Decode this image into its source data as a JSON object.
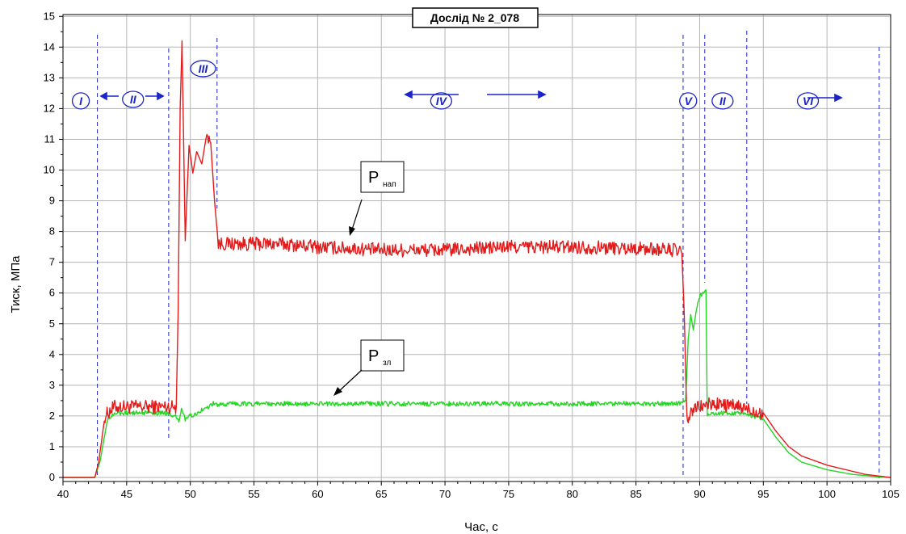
{
  "chart_data": {
    "type": "line",
    "title": "Дослід № 2_078",
    "xlabel": "Час, с",
    "ylabel": "Тиск, МПа",
    "xlim": [
      40,
      105
    ],
    "ylim": [
      -0.2,
      15
    ],
    "xticks": [
      40,
      45,
      50,
      55,
      60,
      65,
      70,
      75,
      80,
      85,
      90,
      95,
      100,
      105
    ],
    "yticks": [
      0,
      1,
      2,
      3,
      4,
      5,
      6,
      7,
      8,
      9,
      10,
      11,
      12,
      13,
      14,
      15
    ],
    "grid": true,
    "colors": {
      "p_nap": "#e31b1b",
      "p_zl": "#22d622",
      "markers": "#1a24c8"
    },
    "series": [
      {
        "name": "P_нап",
        "x": [
          40,
          42.5,
          42.8,
          43.3,
          44,
          48,
          48.9,
          49.05,
          49.2,
          49.35,
          49.6,
          49.9,
          50.2,
          50.5,
          50.9,
          51.3,
          51.6,
          51.9,
          52.2,
          53,
          55,
          57,
          60,
          65,
          70,
          75,
          80,
          85,
          88,
          88.6,
          88.8,
          89.0,
          89.2,
          89.5,
          90,
          91,
          93,
          95,
          96,
          97,
          98,
          100,
          102,
          103,
          104,
          105
        ],
        "y": [
          0,
          0,
          0.5,
          2.0,
          2.3,
          2.3,
          2.3,
          5.5,
          12,
          14.2,
          7.7,
          10.8,
          9.9,
          10.6,
          10.2,
          11.2,
          10.9,
          9.0,
          7.6,
          7.6,
          7.6,
          7.6,
          7.5,
          7.4,
          7.4,
          7.5,
          7.5,
          7.45,
          7.4,
          7.3,
          5.2,
          1.8,
          2.0,
          2.2,
          2.3,
          2.4,
          2.3,
          2.1,
          1.5,
          1.0,
          0.7,
          0.4,
          0.2,
          0.1,
          0.05,
          0
        ]
      },
      {
        "name": "P_зл",
        "x": [
          40,
          42.5,
          42.9,
          43.5,
          44,
          48,
          48.9,
          49.1,
          49.3,
          49.6,
          50,
          50.5,
          51,
          51.8,
          52.3,
          53,
          60,
          70,
          80,
          88,
          88.6,
          88.9,
          89.1,
          89.3,
          89.5,
          89.8,
          90,
          90.2,
          90.5,
          90.6,
          91,
          93,
          95,
          96,
          97,
          98,
          100,
          102,
          104,
          105
        ],
        "y": [
          0,
          0,
          0.5,
          1.9,
          2.1,
          2.1,
          2.0,
          1.8,
          2.2,
          1.9,
          2.0,
          2.1,
          2.2,
          2.4,
          2.35,
          2.4,
          2.4,
          2.4,
          2.4,
          2.4,
          2.4,
          2.5,
          4.5,
          5.3,
          4.8,
          5.6,
          5.9,
          6.0,
          6.1,
          2.0,
          2.1,
          2.1,
          1.9,
          1.3,
          0.8,
          0.5,
          0.25,
          0.1,
          0.02,
          0
        ]
      }
    ],
    "phase_lines_x": [
      42.7,
      48.3,
      52.1,
      88.7,
      90.4,
      93.7,
      104.1
    ],
    "phases": [
      {
        "label": "I",
        "x": 41.4,
        "y": 12.25
      },
      {
        "label": "II",
        "x": 45.5,
        "y": 12.3
      },
      {
        "label": "III",
        "x": 51.0,
        "y": 13.3
      },
      {
        "label": "IV",
        "x": 69.7,
        "y": 12.25
      },
      {
        "label": "V",
        "x": 89.1,
        "y": 12.25
      },
      {
        "label": "II",
        "x": 91.8,
        "y": 12.25
      },
      {
        "label": "VI",
        "x": 98.5,
        "y": 12.25
      }
    ],
    "annotations": [
      {
        "label": "P",
        "sub": "нап"
      },
      {
        "label": "P",
        "sub": "зл"
      }
    ]
  }
}
